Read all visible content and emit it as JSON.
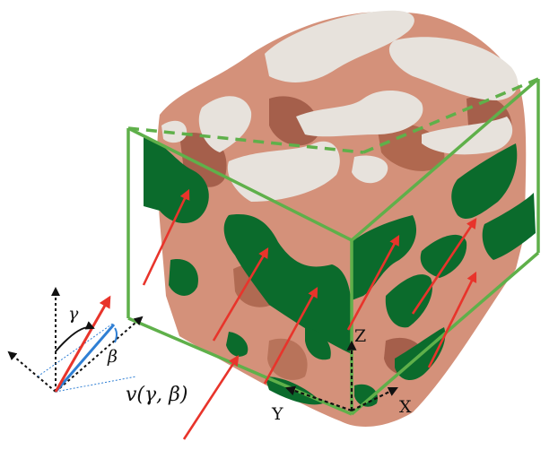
{
  "labels": {
    "z_axis": "Z",
    "y_axis": "Y",
    "x_axis": "X",
    "gamma": "γ",
    "beta": "β",
    "velocity": "v(γ, β)"
  },
  "colors": {
    "frame_green": "#5fb04a",
    "section_green": "#0b6b2c",
    "pore_surface": "#d4917a",
    "pore_shadow": "#a55f4b",
    "top_surface": "#e7e2dc",
    "arrow_red": "#e8342b",
    "angle_blue": "#2f7fd4"
  }
}
